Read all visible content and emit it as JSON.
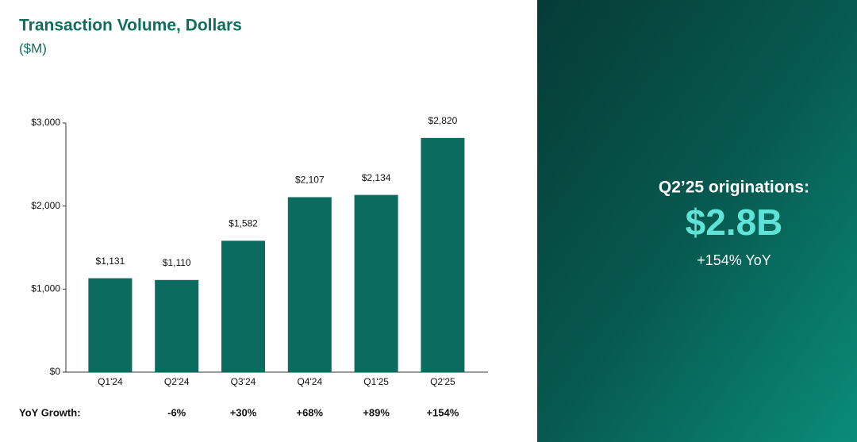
{
  "chart_data": {
    "type": "bar",
    "title": "Transaction Volume, Dollars",
    "subtitle": "($M)",
    "categories": [
      "Q1'24",
      "Q2'24",
      "Q3'24",
      "Q4'24",
      "Q1'25",
      "Q2'25"
    ],
    "values": [
      1131,
      1110,
      1582,
      2107,
      2134,
      2820
    ],
    "value_labels": [
      "$1,131",
      "$1,110",
      "$1,582",
      "$2,107",
      "$2,134",
      "$2,820"
    ],
    "color": "#0b6b5e",
    "ylim": [
      0,
      3000
    ],
    "yticks": [
      {
        "value": 0,
        "label": "$0"
      },
      {
        "value": 1000,
        "label": "$1,000"
      },
      {
        "value": 2000,
        "label": "$2,000"
      },
      {
        "value": 3000,
        "label": "$3,000"
      }
    ],
    "grid": false,
    "yoy_label": "YoY Growth:",
    "yoy_values": [
      null,
      "-6%",
      "+30%",
      "+68%",
      "+89%",
      "+154%"
    ]
  },
  "callout": {
    "title": "Q2’25 originations:",
    "value": "$2.8B",
    "subtitle": "+154% YoY"
  }
}
